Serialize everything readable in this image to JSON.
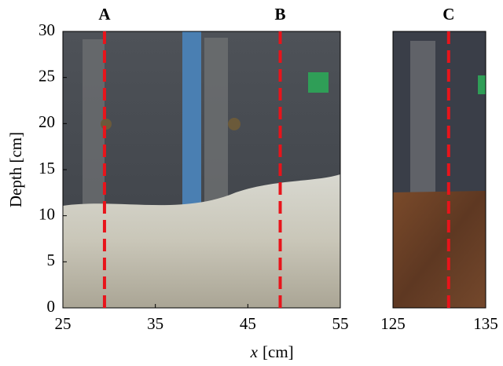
{
  "chart_data": {
    "type": "photo-panels",
    "ylabel": "Depth [cm]",
    "xlabel_var": "x",
    "xlabel_unit": "[cm]",
    "ylim": [
      0,
      30
    ],
    "yticks": [
      0,
      5,
      10,
      15,
      20,
      25,
      30
    ],
    "marker_color": "#e8141b",
    "panels": [
      {
        "xlim": [
          25,
          55
        ],
        "xticks": [
          25,
          35,
          45,
          55
        ],
        "markers": [
          {
            "label": "A",
            "x": 29.5
          },
          {
            "label": "B",
            "x": 48.5
          }
        ]
      },
      {
        "xlim": [
          125,
          135
        ],
        "xticks": [
          125,
          135
        ],
        "markers": [
          {
            "label": "C",
            "x": 131
          }
        ]
      }
    ]
  }
}
